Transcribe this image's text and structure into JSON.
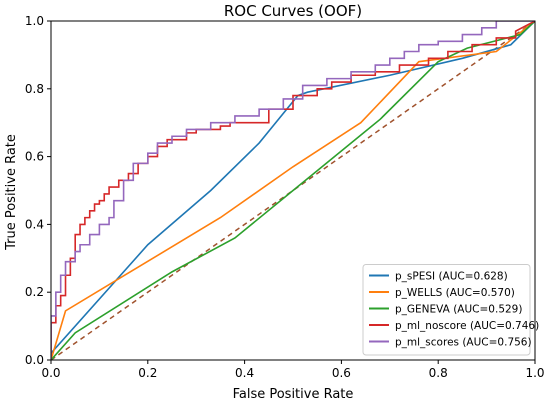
{
  "chart_data": {
    "type": "line",
    "title": "ROC Curves (OOF)",
    "xlabel": "False Positive Rate",
    "ylabel": "True Positive Rate",
    "xlim": [
      0.0,
      1.0
    ],
    "ylim": [
      0.0,
      1.0
    ],
    "x_ticks": [
      "0.0",
      "0.2",
      "0.4",
      "0.6",
      "0.8",
      "1.0"
    ],
    "y_ticks": [
      "0.0",
      "0.2",
      "0.4",
      "0.6",
      "0.8",
      "1.0"
    ],
    "grid": false,
    "legend_position": "lower-right",
    "reference_line": {
      "x": [
        0,
        1
      ],
      "y": [
        0,
        1
      ],
      "style": "dashed",
      "color": "#a0522d"
    },
    "series": [
      {
        "name": "p_sPESI (AUC=0.628)",
        "color": "#1f77b4",
        "x": [
          0.0,
          0.0,
          0.2,
          0.33,
          0.43,
          0.51,
          0.53,
          0.7,
          0.85,
          0.95,
          1.0
        ],
        "y": [
          0.0,
          0.02,
          0.34,
          0.5,
          0.64,
          0.78,
          0.79,
          0.84,
          0.89,
          0.93,
          1.0
        ]
      },
      {
        "name": "p_WELLS (AUC=0.570)",
        "color": "#ff7f0e",
        "x": [
          0.0,
          0.03,
          0.35,
          0.5,
          0.64,
          0.76,
          0.92,
          1.0
        ],
        "y": [
          0.0,
          0.145,
          0.42,
          0.57,
          0.7,
          0.88,
          0.91,
          1.0
        ]
      },
      {
        "name": "p_GENEVA (AUC=0.529)",
        "color": "#2ca02c",
        "x": [
          0.0,
          0.05,
          0.25,
          0.38,
          0.5,
          0.68,
          0.8,
          0.86,
          0.97,
          1.0
        ],
        "y": [
          0.0,
          0.08,
          0.26,
          0.36,
          0.5,
          0.71,
          0.88,
          0.92,
          0.96,
          1.0
        ]
      },
      {
        "name": "p_ml_noscore (AUC=0.746)",
        "color": "#d62728",
        "x": [
          0.0,
          0.0,
          0.01,
          0.01,
          0.02,
          0.02,
          0.03,
          0.03,
          0.04,
          0.04,
          0.05,
          0.05,
          0.06,
          0.06,
          0.07,
          0.07,
          0.08,
          0.08,
          0.09,
          0.09,
          0.1,
          0.1,
          0.11,
          0.11,
          0.12,
          0.12,
          0.14,
          0.14,
          0.16,
          0.16,
          0.18,
          0.18,
          0.2,
          0.2,
          0.22,
          0.22,
          0.24,
          0.24,
          0.28,
          0.28,
          0.3,
          0.3,
          0.35,
          0.35,
          0.37,
          0.37,
          0.45,
          0.45,
          0.5,
          0.5,
          0.55,
          0.55,
          0.58,
          0.58,
          0.62,
          0.62,
          0.67,
          0.67,
          0.72,
          0.72,
          0.78,
          0.78,
          0.82,
          0.82,
          0.87,
          0.87,
          0.92,
          0.92,
          0.96,
          0.96,
          1.0
        ],
        "y": [
          0.0,
          0.11,
          0.11,
          0.16,
          0.16,
          0.19,
          0.19,
          0.25,
          0.25,
          0.3,
          0.3,
          0.37,
          0.37,
          0.4,
          0.4,
          0.42,
          0.42,
          0.44,
          0.44,
          0.46,
          0.46,
          0.47,
          0.47,
          0.49,
          0.49,
          0.51,
          0.51,
          0.53,
          0.53,
          0.55,
          0.55,
          0.58,
          0.58,
          0.6,
          0.6,
          0.63,
          0.63,
          0.65,
          0.65,
          0.67,
          0.67,
          0.68,
          0.68,
          0.69,
          0.69,
          0.7,
          0.7,
          0.74,
          0.74,
          0.78,
          0.78,
          0.8,
          0.8,
          0.82,
          0.82,
          0.84,
          0.84,
          0.85,
          0.85,
          0.87,
          0.87,
          0.89,
          0.89,
          0.91,
          0.91,
          0.93,
          0.93,
          0.95,
          0.95,
          0.97,
          1.0
        ]
      },
      {
        "name": "p_ml_scores (AUC=0.756)",
        "color": "#9467bd",
        "x": [
          0.0,
          0.0,
          0.01,
          0.01,
          0.02,
          0.02,
          0.03,
          0.03,
          0.05,
          0.05,
          0.06,
          0.06,
          0.08,
          0.08,
          0.1,
          0.1,
          0.12,
          0.12,
          0.13,
          0.13,
          0.15,
          0.15,
          0.17,
          0.17,
          0.2,
          0.2,
          0.22,
          0.22,
          0.25,
          0.25,
          0.28,
          0.28,
          0.33,
          0.33,
          0.38,
          0.38,
          0.43,
          0.43,
          0.48,
          0.48,
          0.52,
          0.52,
          0.57,
          0.57,
          0.62,
          0.62,
          0.67,
          0.67,
          0.7,
          0.7,
          0.73,
          0.73,
          0.76,
          0.76,
          0.8,
          0.8,
          0.85,
          0.85,
          0.89,
          0.89,
          0.92,
          0.92,
          1.0
        ],
        "y": [
          0.0,
          0.13,
          0.13,
          0.2,
          0.2,
          0.25,
          0.25,
          0.29,
          0.29,
          0.32,
          0.32,
          0.34,
          0.34,
          0.37,
          0.37,
          0.4,
          0.4,
          0.42,
          0.42,
          0.47,
          0.47,
          0.53,
          0.53,
          0.58,
          0.58,
          0.61,
          0.61,
          0.64,
          0.64,
          0.66,
          0.66,
          0.68,
          0.68,
          0.7,
          0.7,
          0.72,
          0.72,
          0.74,
          0.74,
          0.77,
          0.77,
          0.81,
          0.81,
          0.83,
          0.83,
          0.85,
          0.85,
          0.87,
          0.87,
          0.89,
          0.89,
          0.91,
          0.91,
          0.93,
          0.93,
          0.94,
          0.94,
          0.96,
          0.96,
          0.98,
          0.98,
          1.0,
          1.0
        ]
      }
    ]
  }
}
